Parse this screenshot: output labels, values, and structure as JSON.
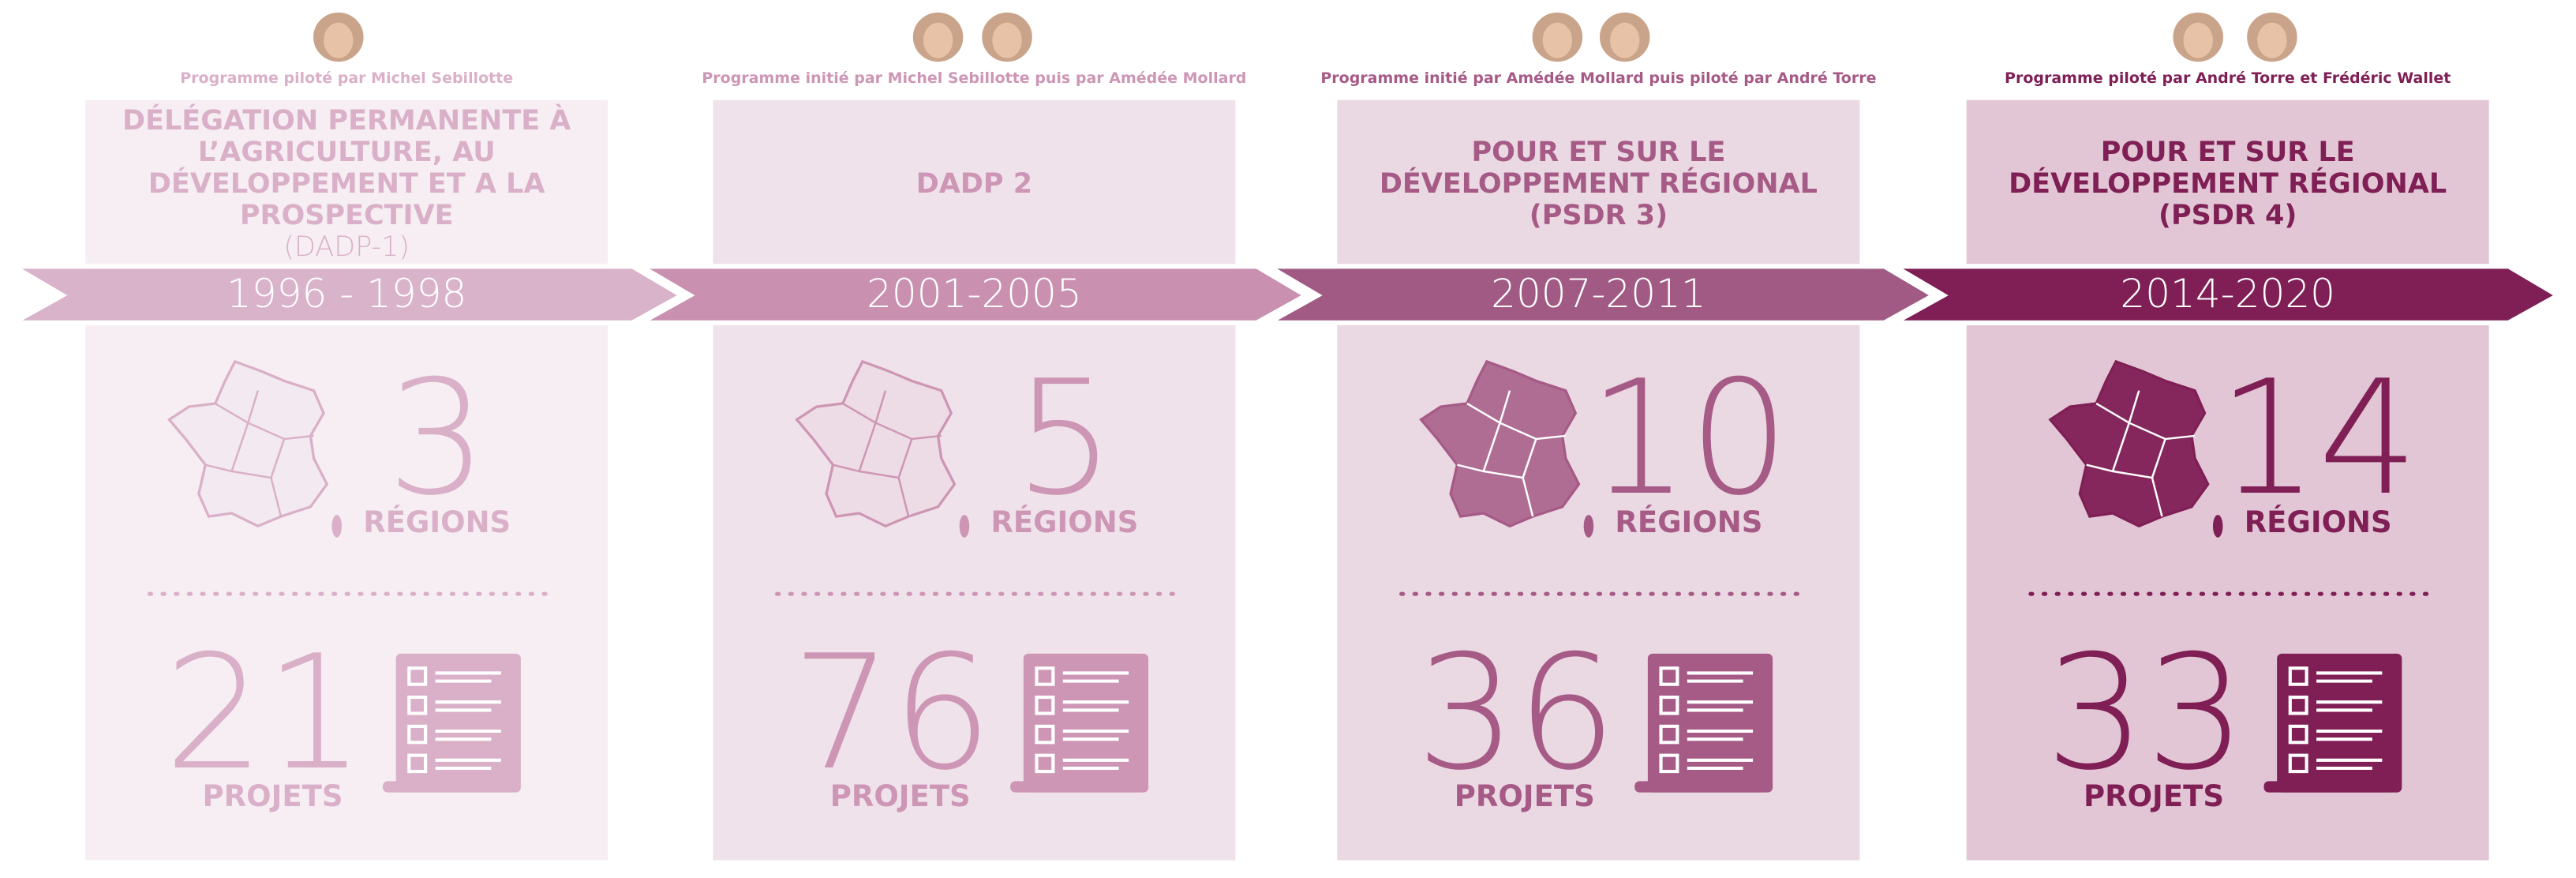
{
  "programs": [
    {
      "pilots": "Programme piloté par Michel Sebillotte",
      "title": "DÉLÉGATION PERMANENTE À L’AGRICULTURE, AU DÉVELOPPEMENT ET A LA PROSPECTIVE",
      "subtitle": "(DADP-1)",
      "period": "1996 - 1998",
      "regions": 3,
      "regions_label": "RÉGIONS",
      "projects": 21,
      "projects_label": "PROJETS"
    },
    {
      "pilots": "Programme initié par Michel Sebillotte puis par Amédée Mollard",
      "title": "DADP 2",
      "period": "2001-2005",
      "regions": 5,
      "regions_label": "RÉGIONS",
      "projects": 76,
      "projects_label": "PROJETS"
    },
    {
      "pilots": "Programme initié par Amédée Mollard puis piloté par André Torre",
      "title": "POUR ET SUR LE DÉVELOPPEMENT RÉGIONAL (PSDR 3)",
      "period": "2007-2011",
      "regions": 10,
      "regions_label": "RÉGIONS",
      "projects": 36,
      "projects_label": "PROJETS"
    },
    {
      "pilots": "Programme piloté par André Torre et Frédéric Wallet",
      "title": "POUR ET SUR LE DÉVELOPPEMENT RÉGIONAL (PSDR 4)",
      "period": "2014-2020",
      "regions": 14,
      "regions_label": "RÉGIONS",
      "projects": 33,
      "projects_label": "PROJETS"
    }
  ]
}
